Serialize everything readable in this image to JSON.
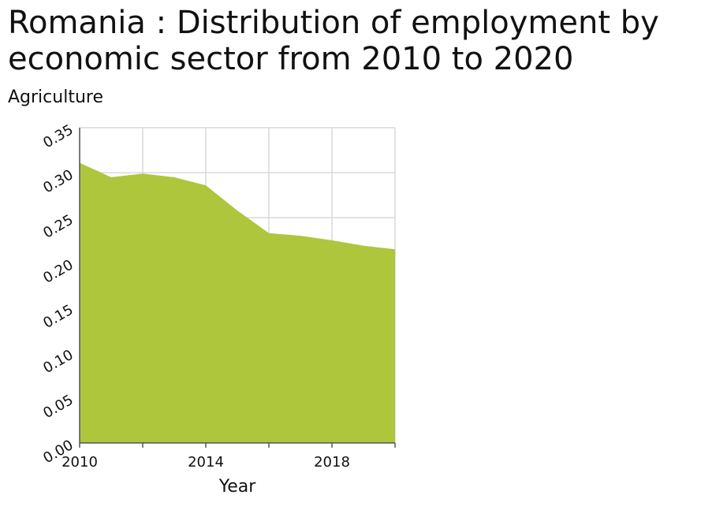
{
  "chart_data": {
    "type": "area",
    "title": "Romania : Distribution of employment by economic sector from 2010 to 2020",
    "xlabel": "Year",
    "ylabel": "Agriculture",
    "x": [
      2010,
      2011,
      2012,
      2013,
      2014,
      2015,
      2016,
      2017,
      2018,
      2019,
      2020
    ],
    "values": [
      0.311,
      0.295,
      0.299,
      0.295,
      0.286,
      0.258,
      0.233,
      0.23,
      0.225,
      0.219,
      0.215
    ],
    "xlim": [
      2010,
      2020
    ],
    "ylim": [
      0,
      0.35
    ],
    "xticks": [
      "2010",
      "2014",
      "2018"
    ],
    "xtick_values": [
      2010,
      2014,
      2018
    ],
    "yticks": [
      "0.00",
      "0.05",
      "0.10",
      "0.15",
      "0.20",
      "0.25",
      "0.30",
      "0.35"
    ],
    "ytick_values": [
      0,
      0.05,
      0.1,
      0.15,
      0.2,
      0.25,
      0.3,
      0.35
    ],
    "x_grid": [
      2010,
      2012,
      2014,
      2016,
      2018,
      2020
    ],
    "grid": true,
    "fill_color": "#adc63c",
    "grid_color": "#d9d9d9",
    "axis_color": "#555555"
  }
}
